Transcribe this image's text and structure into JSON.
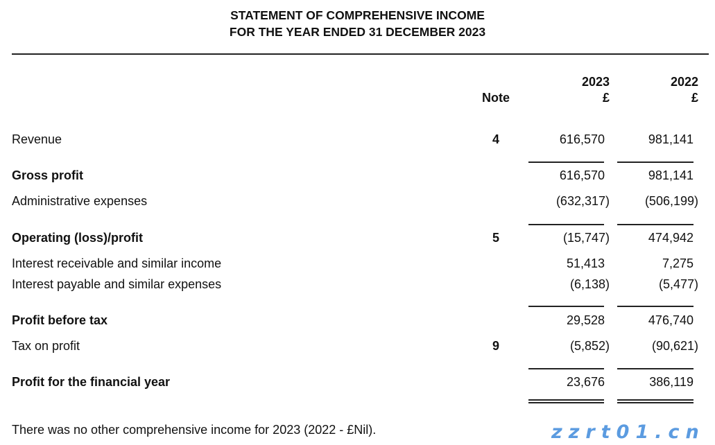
{
  "title": {
    "line1": "STATEMENT OF COMPREHENSIVE INCOME",
    "line2": "FOR THE YEAR ENDED 31 DECEMBER 2023"
  },
  "header": {
    "note": "Note",
    "col1_year": "2023",
    "col1_unit": "£",
    "col2_year": "2022",
    "col2_unit": "£"
  },
  "rows": [
    {
      "label": "Revenue",
      "note": "4",
      "v2023": "616,570",
      "v2022": "981,141",
      "bold": false
    },
    {
      "label": "Gross profit",
      "note": "",
      "v2023": "616,570",
      "v2022": "981,141",
      "bold": true
    },
    {
      "label": "Administrative expenses",
      "note": "",
      "v2023": "(632,317)",
      "v2022": "(506,199)",
      "bold": false
    },
    {
      "label": "Operating (loss)/profit",
      "note": "5",
      "v2023": "(15,747)",
      "v2022": "474,942",
      "bold": true
    },
    {
      "label": "Interest receivable and similar income",
      "note": "",
      "v2023": "51,413",
      "v2022": "7,275",
      "bold": false
    },
    {
      "label": "Interest payable and similar expenses",
      "note": "",
      "v2023": "(6,138)",
      "v2022": "(5,477)",
      "bold": false
    },
    {
      "label": "Profit before tax",
      "note": "",
      "v2023": "29,528",
      "v2022": "476,740",
      "bold": true
    },
    {
      "label": "Tax on profit",
      "note": "9",
      "v2023": "(5,852)",
      "v2022": "(90,621)",
      "bold": false
    },
    {
      "label": "Profit for the financial year",
      "note": "",
      "v2023": "23,676",
      "v2022": "386,119",
      "bold": true
    }
  ],
  "footer": "There was no other comprehensive income for 2023 (2022 - £Nil).",
  "watermark": {
    "url": "zzrt01.cn",
    "color": "#5b9be0"
  }
}
